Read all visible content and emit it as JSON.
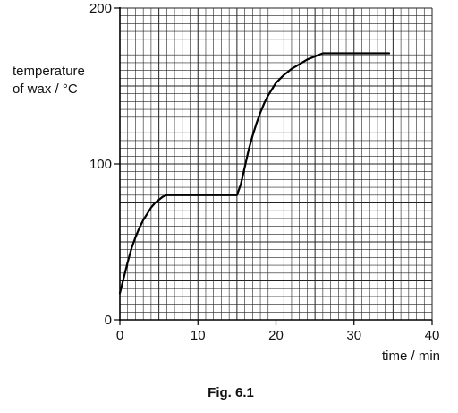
{
  "chart_data": {
    "type": "line",
    "ylabel_line1": "temperature",
    "ylabel_line2": "of wax / °C",
    "xlabel": "time / min",
    "caption": "Fig. 6.1",
    "xlim": [
      0,
      40
    ],
    "ylim": [
      0,
      200
    ],
    "x_ticks": [
      0,
      10,
      20,
      30,
      40
    ],
    "y_ticks": [
      0,
      100,
      200
    ],
    "grid": true,
    "series": [
      {
        "x": [
          0,
          0.5,
          1,
          1.5,
          2,
          2.5,
          3,
          3.5,
          4,
          4.5,
          5,
          5.5,
          6,
          10,
          15,
          15.5,
          16,
          16.5,
          17,
          17.5,
          18,
          18.5,
          19,
          19.5,
          20,
          21,
          22,
          23,
          24,
          25,
          26,
          30,
          34.5
        ],
        "y": [
          17,
          27,
          37,
          46,
          53,
          59,
          64,
          68,
          72,
          75,
          77,
          79,
          80,
          80,
          80,
          87,
          98,
          109,
          118,
          126,
          133,
          139,
          144,
          148,
          152,
          157,
          161,
          164,
          167,
          169,
          171,
          171,
          171
        ]
      }
    ]
  }
}
